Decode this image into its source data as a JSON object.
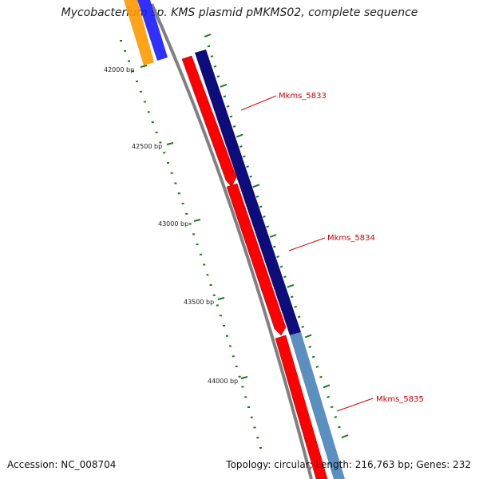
{
  "title": "Mycobacterium sp. KMS plasmid pMKMS02, complete sequence",
  "footer": {
    "accession": "Accession: NC_008704",
    "summary": "Topology: circular; Length: 216,763 bp; Genes: 232"
  },
  "ticks": [
    {
      "label": "42000 bp"
    },
    {
      "label": "42500 bp"
    },
    {
      "label": "43000 bp"
    },
    {
      "label": "43500 bp"
    },
    {
      "label": "44000 bp"
    }
  ],
  "genes": [
    {
      "label": "Mkms_5833"
    },
    {
      "label": "Mkms_5834"
    },
    {
      "label": "Mkms_5835"
    }
  ],
  "colors": {
    "forward_red": "#ff0000",
    "navy": "#0c0c7a",
    "steel_blue": "#5b8fbf",
    "orange": "#ff9900",
    "blue": "#1a1aff",
    "backbone": "#808080",
    "tick_green": "#1a7a1a"
  }
}
